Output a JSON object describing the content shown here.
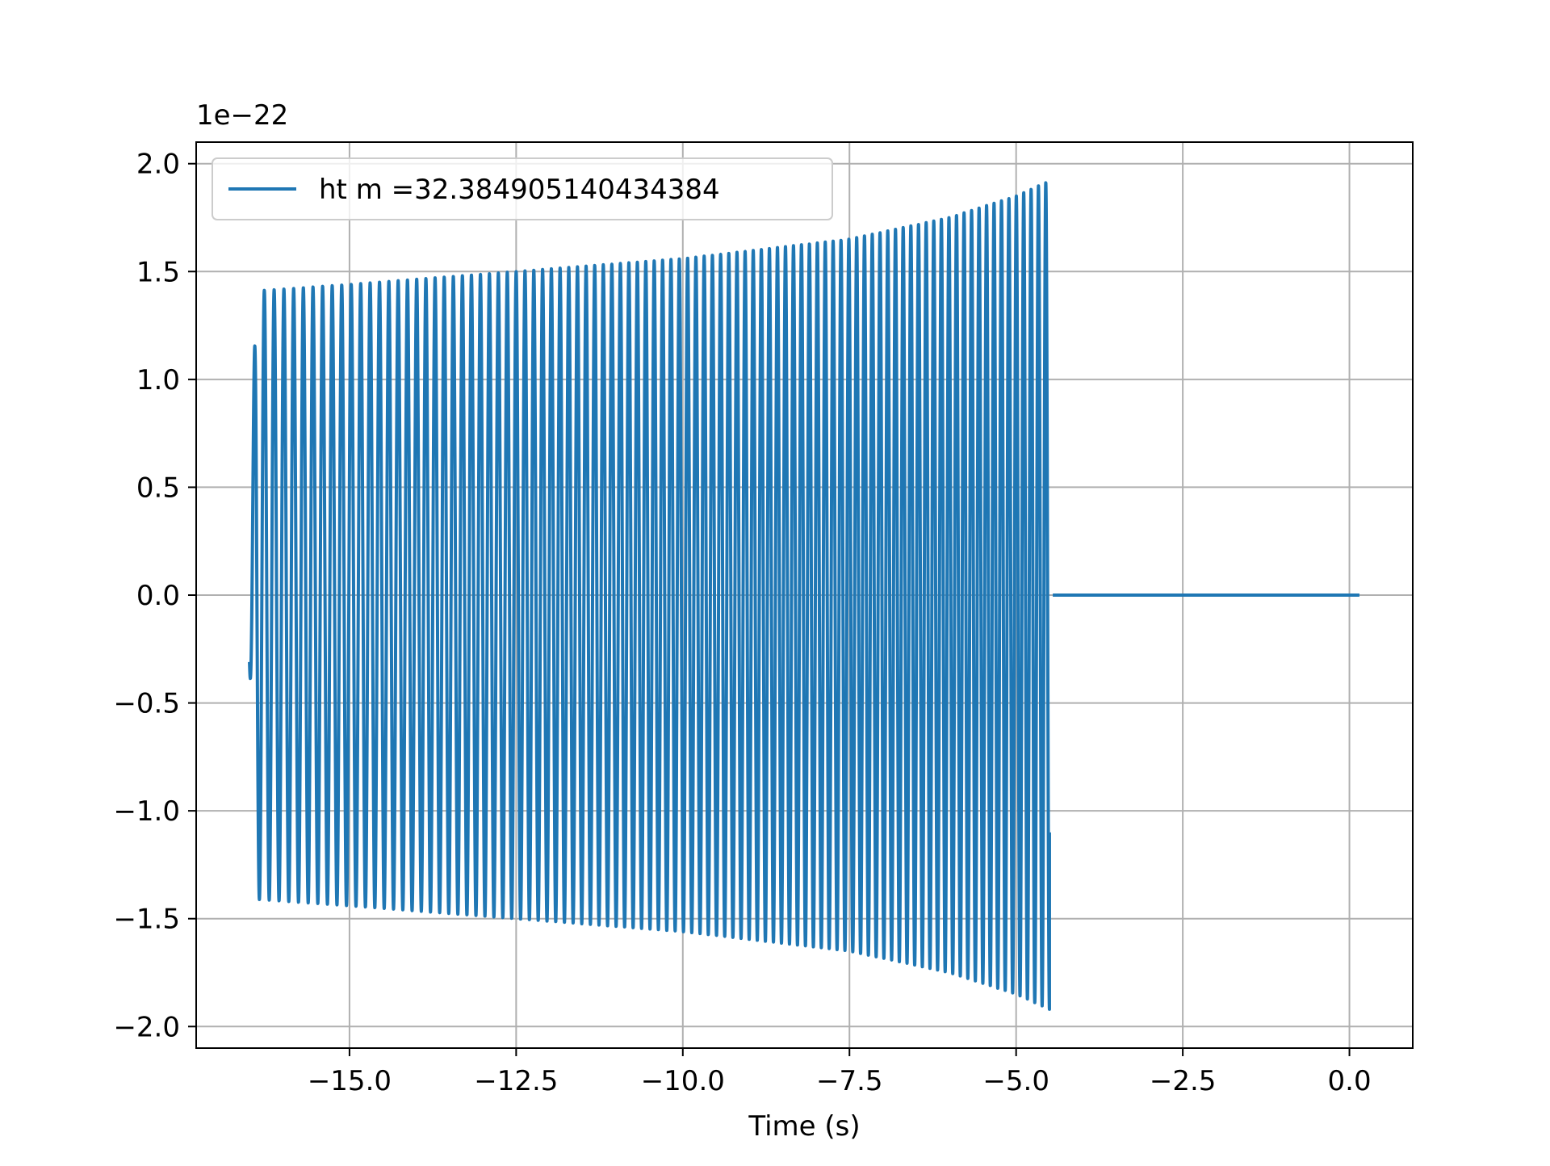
{
  "chart_data": {
    "type": "line",
    "title": "",
    "xlabel": "Time (s)",
    "ylabel": "",
    "y_offset_text": "1e−22",
    "xlim": [
      -17.3,
      0.95
    ],
    "ylim": [
      -2.1,
      2.1
    ],
    "x_ticks": [
      -15.0,
      -12.5,
      -10.0,
      -7.5,
      -5.0,
      -2.5,
      0.0
    ],
    "x_tick_labels": [
      "−15.0",
      "−12.5",
      "−10.0",
      "−7.5",
      "−5.0",
      "−2.5",
      "0.0"
    ],
    "y_ticks": [
      -2.0,
      -1.5,
      -1.0,
      -0.5,
      0.0,
      0.5,
      1.0,
      1.5,
      2.0
    ],
    "y_tick_labels": [
      "−2.0",
      "−1.5",
      "−1.0",
      "−0.5",
      "0.0",
      "0.5",
      "1.0",
      "1.5",
      "2.0"
    ],
    "grid": true,
    "legend_position": "upper-left",
    "series": [
      {
        "name": "ht m =32.384905140434384",
        "color": "#1f77b4",
        "chirp": {
          "x_start": -16.5,
          "x_end": -4.5,
          "cycles": 95,
          "envelope_x": [
            -16.5,
            -16.4,
            -15.0,
            -12.5,
            -10.0,
            -7.5,
            -6.0,
            -5.0,
            -4.5
          ],
          "envelope_y": [
            0.31,
            1.41,
            1.44,
            1.5,
            1.56,
            1.65,
            1.75,
            1.85,
            1.92
          ],
          "end_value": -1.1
        },
        "flat": {
          "x_start": -4.45,
          "x_end": 0.15,
          "value": 0.0
        }
      }
    ]
  }
}
